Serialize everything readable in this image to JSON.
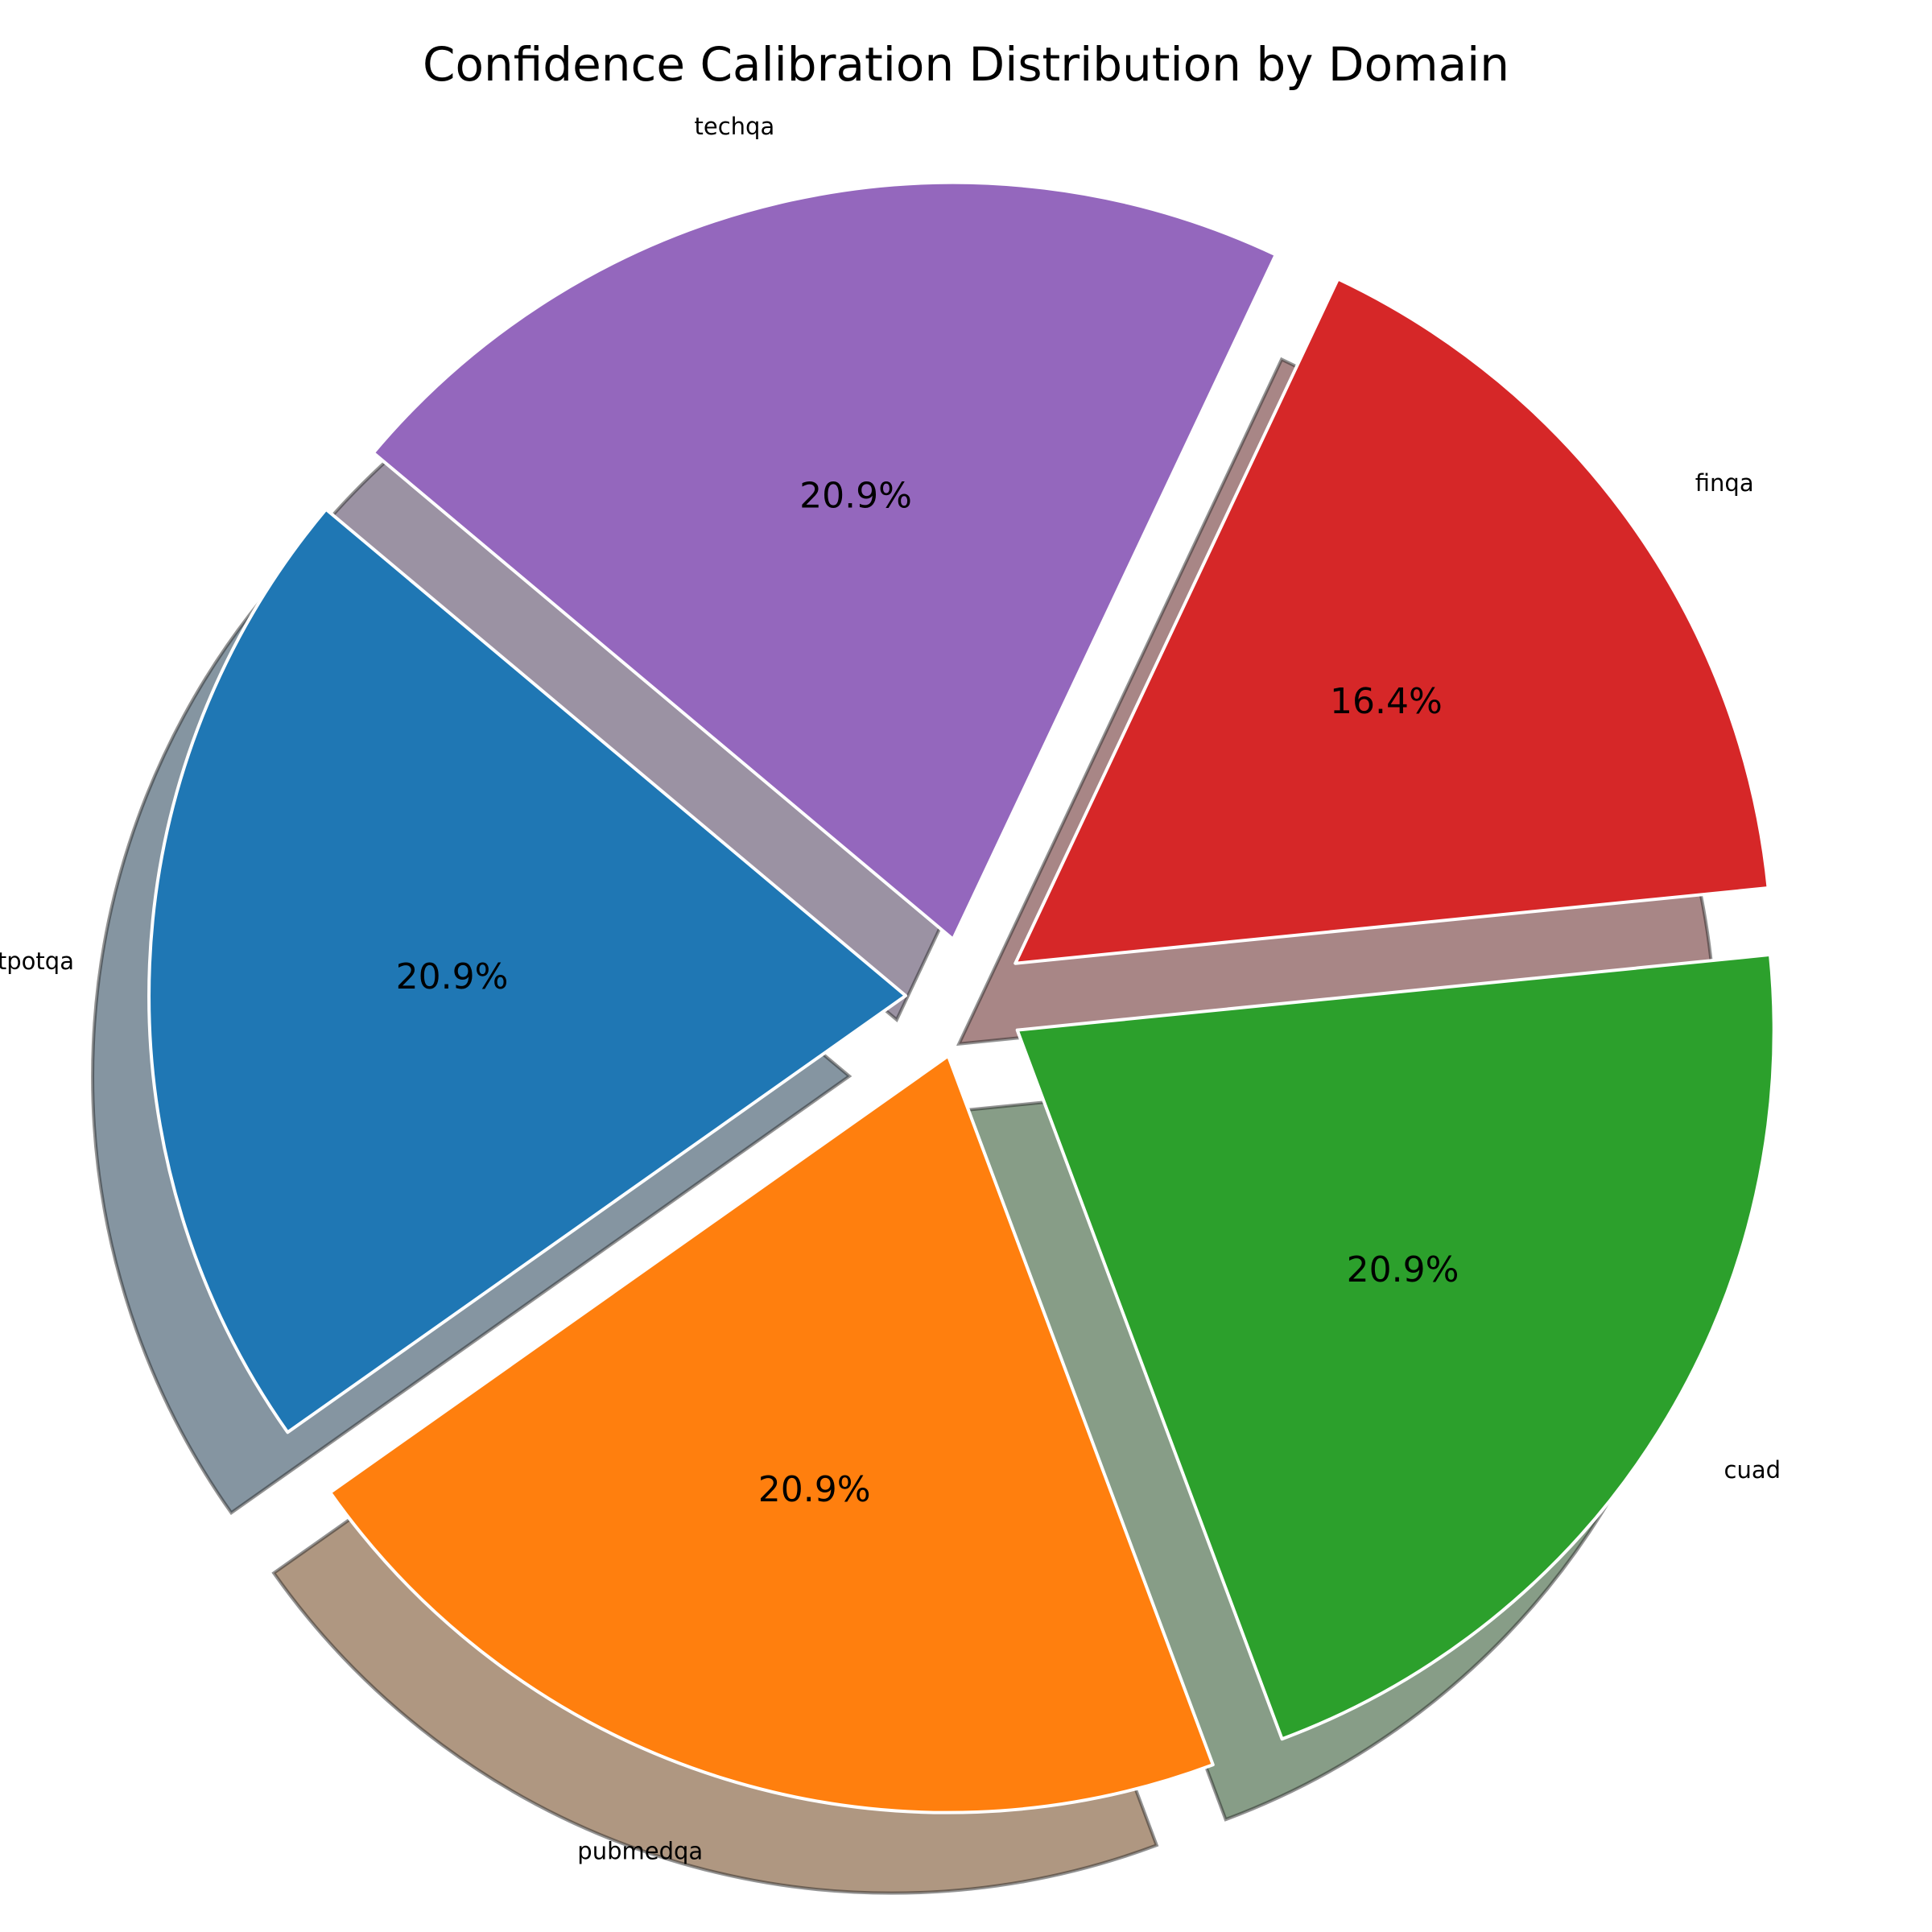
{
  "chart_data": {
    "type": "pie",
    "title": "Confidence Calibration Distribution by Domain",
    "slices": [
      {
        "label": "hotpotqa",
        "value": 20.9,
        "pct_label": "20.9%",
        "color": "#1f77b4"
      },
      {
        "label": "pubmedqa",
        "value": 20.9,
        "pct_label": "20.9%",
        "color": "#ff7f0e"
      },
      {
        "label": "cuad",
        "value": 20.9,
        "pct_label": "20.9%",
        "color": "#2ca02c"
      },
      {
        "label": "finqa",
        "value": 16.4,
        "pct_label": "16.4%",
        "color": "#d62728"
      },
      {
        "label": "techqa",
        "value": 20.9,
        "pct_label": "20.9%",
        "color": "#9467bd"
      }
    ],
    "start_angle_deg": 140,
    "counterclock": true,
    "exploded": true,
    "shadow": true,
    "edge_color": "#ffffff",
    "legend": "none"
  }
}
